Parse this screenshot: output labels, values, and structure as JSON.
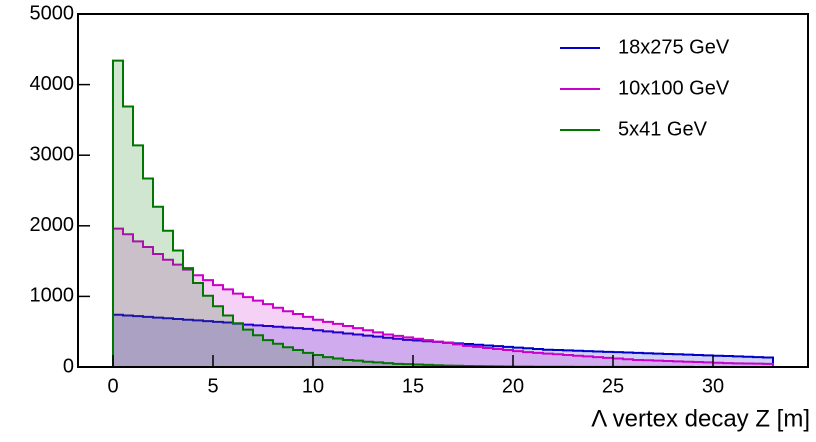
{
  "chart_data": {
    "type": "histogram",
    "x_label": "Λ vertex decay Z [m]",
    "bins": [
      0,
      0.5,
      1,
      1.5,
      2,
      2.5,
      3,
      3.5,
      4,
      4.5,
      5,
      5.5,
      6,
      6.5,
      7,
      7.5,
      8,
      8.5,
      9,
      9.5,
      10,
      10.5,
      11,
      11.5,
      12,
      12.5,
      13,
      13.5,
      14,
      14.5,
      15,
      15.5,
      16,
      16.5,
      17,
      17.5,
      18,
      18.5,
      19,
      19.5,
      20,
      20.5,
      21,
      21.5,
      22,
      22.5,
      23,
      23.5,
      24,
      24.5,
      25,
      25.5,
      26,
      26.5,
      27,
      27.5,
      28,
      28.5,
      29,
      29.5,
      30,
      30.5,
      31,
      31.5,
      32,
      32.5,
      33
    ],
    "series": [
      {
        "name": "18x275 GeV",
        "color": "#0000cc",
        "values": [
          740,
          730,
          720,
          710,
          700,
          690,
          680,
          670,
          660,
          650,
          640,
          630,
          615,
          600,
          590,
          580,
          570,
          560,
          550,
          540,
          520,
          505,
          490,
          475,
          460,
          445,
          430,
          415,
          400,
          385,
          375,
          365,
          355,
          345,
          335,
          325,
          315,
          305,
          295,
          285,
          275,
          265,
          255,
          245,
          240,
          235,
          230,
          225,
          220,
          215,
          210,
          205,
          200,
          195,
          190,
          185,
          180,
          175,
          170,
          165,
          160,
          155,
          150,
          145,
          140,
          135
        ]
      },
      {
        "name": "10x100 GeV",
        "color": "#cc00cc",
        "values": [
          1960,
          1880,
          1780,
          1700,
          1600,
          1520,
          1450,
          1380,
          1300,
          1230,
          1160,
          1100,
          1040,
          990,
          940,
          890,
          840,
          790,
          750,
          710,
          670,
          640,
          610,
          580,
          550,
          520,
          490,
          460,
          440,
          420,
          400,
          380,
          360,
          340,
          320,
          300,
          285,
          270,
          255,
          240,
          225,
          210,
          200,
          190,
          180,
          170,
          160,
          150,
          140,
          130,
          120,
          110,
          100,
          95,
          90,
          85,
          80,
          75,
          70,
          65,
          60,
          55,
          52,
          50,
          48,
          45
        ]
      },
      {
        "name": "5x41 GeV",
        "color": "#007700",
        "values": [
          4340,
          3690,
          3140,
          2670,
          2270,
          1930,
          1650,
          1400,
          1190,
          1010,
          860,
          730,
          620,
          530,
          450,
          380,
          330,
          280,
          240,
          200,
          170,
          140,
          120,
          100,
          90,
          75,
          65,
          55,
          45,
          40,
          35,
          30,
          25,
          20,
          18,
          15,
          12,
          10,
          8,
          7,
          6,
          5,
          4,
          4,
          3,
          3,
          2,
          2,
          2,
          2,
          1,
          1,
          1,
          1,
          1,
          1,
          1,
          1,
          0,
          0,
          0,
          0,
          0,
          0,
          0,
          0
        ]
      }
    ],
    "xlim": [
      -1.75,
      34.75
    ],
    "xticks": [
      0,
      5,
      10,
      15,
      20,
      25,
      30
    ],
    "ylim": [
      0,
      5000
    ],
    "yticks": [
      0,
      1000,
      2000,
      3000,
      4000,
      5000
    ],
    "legend": "upper right"
  }
}
